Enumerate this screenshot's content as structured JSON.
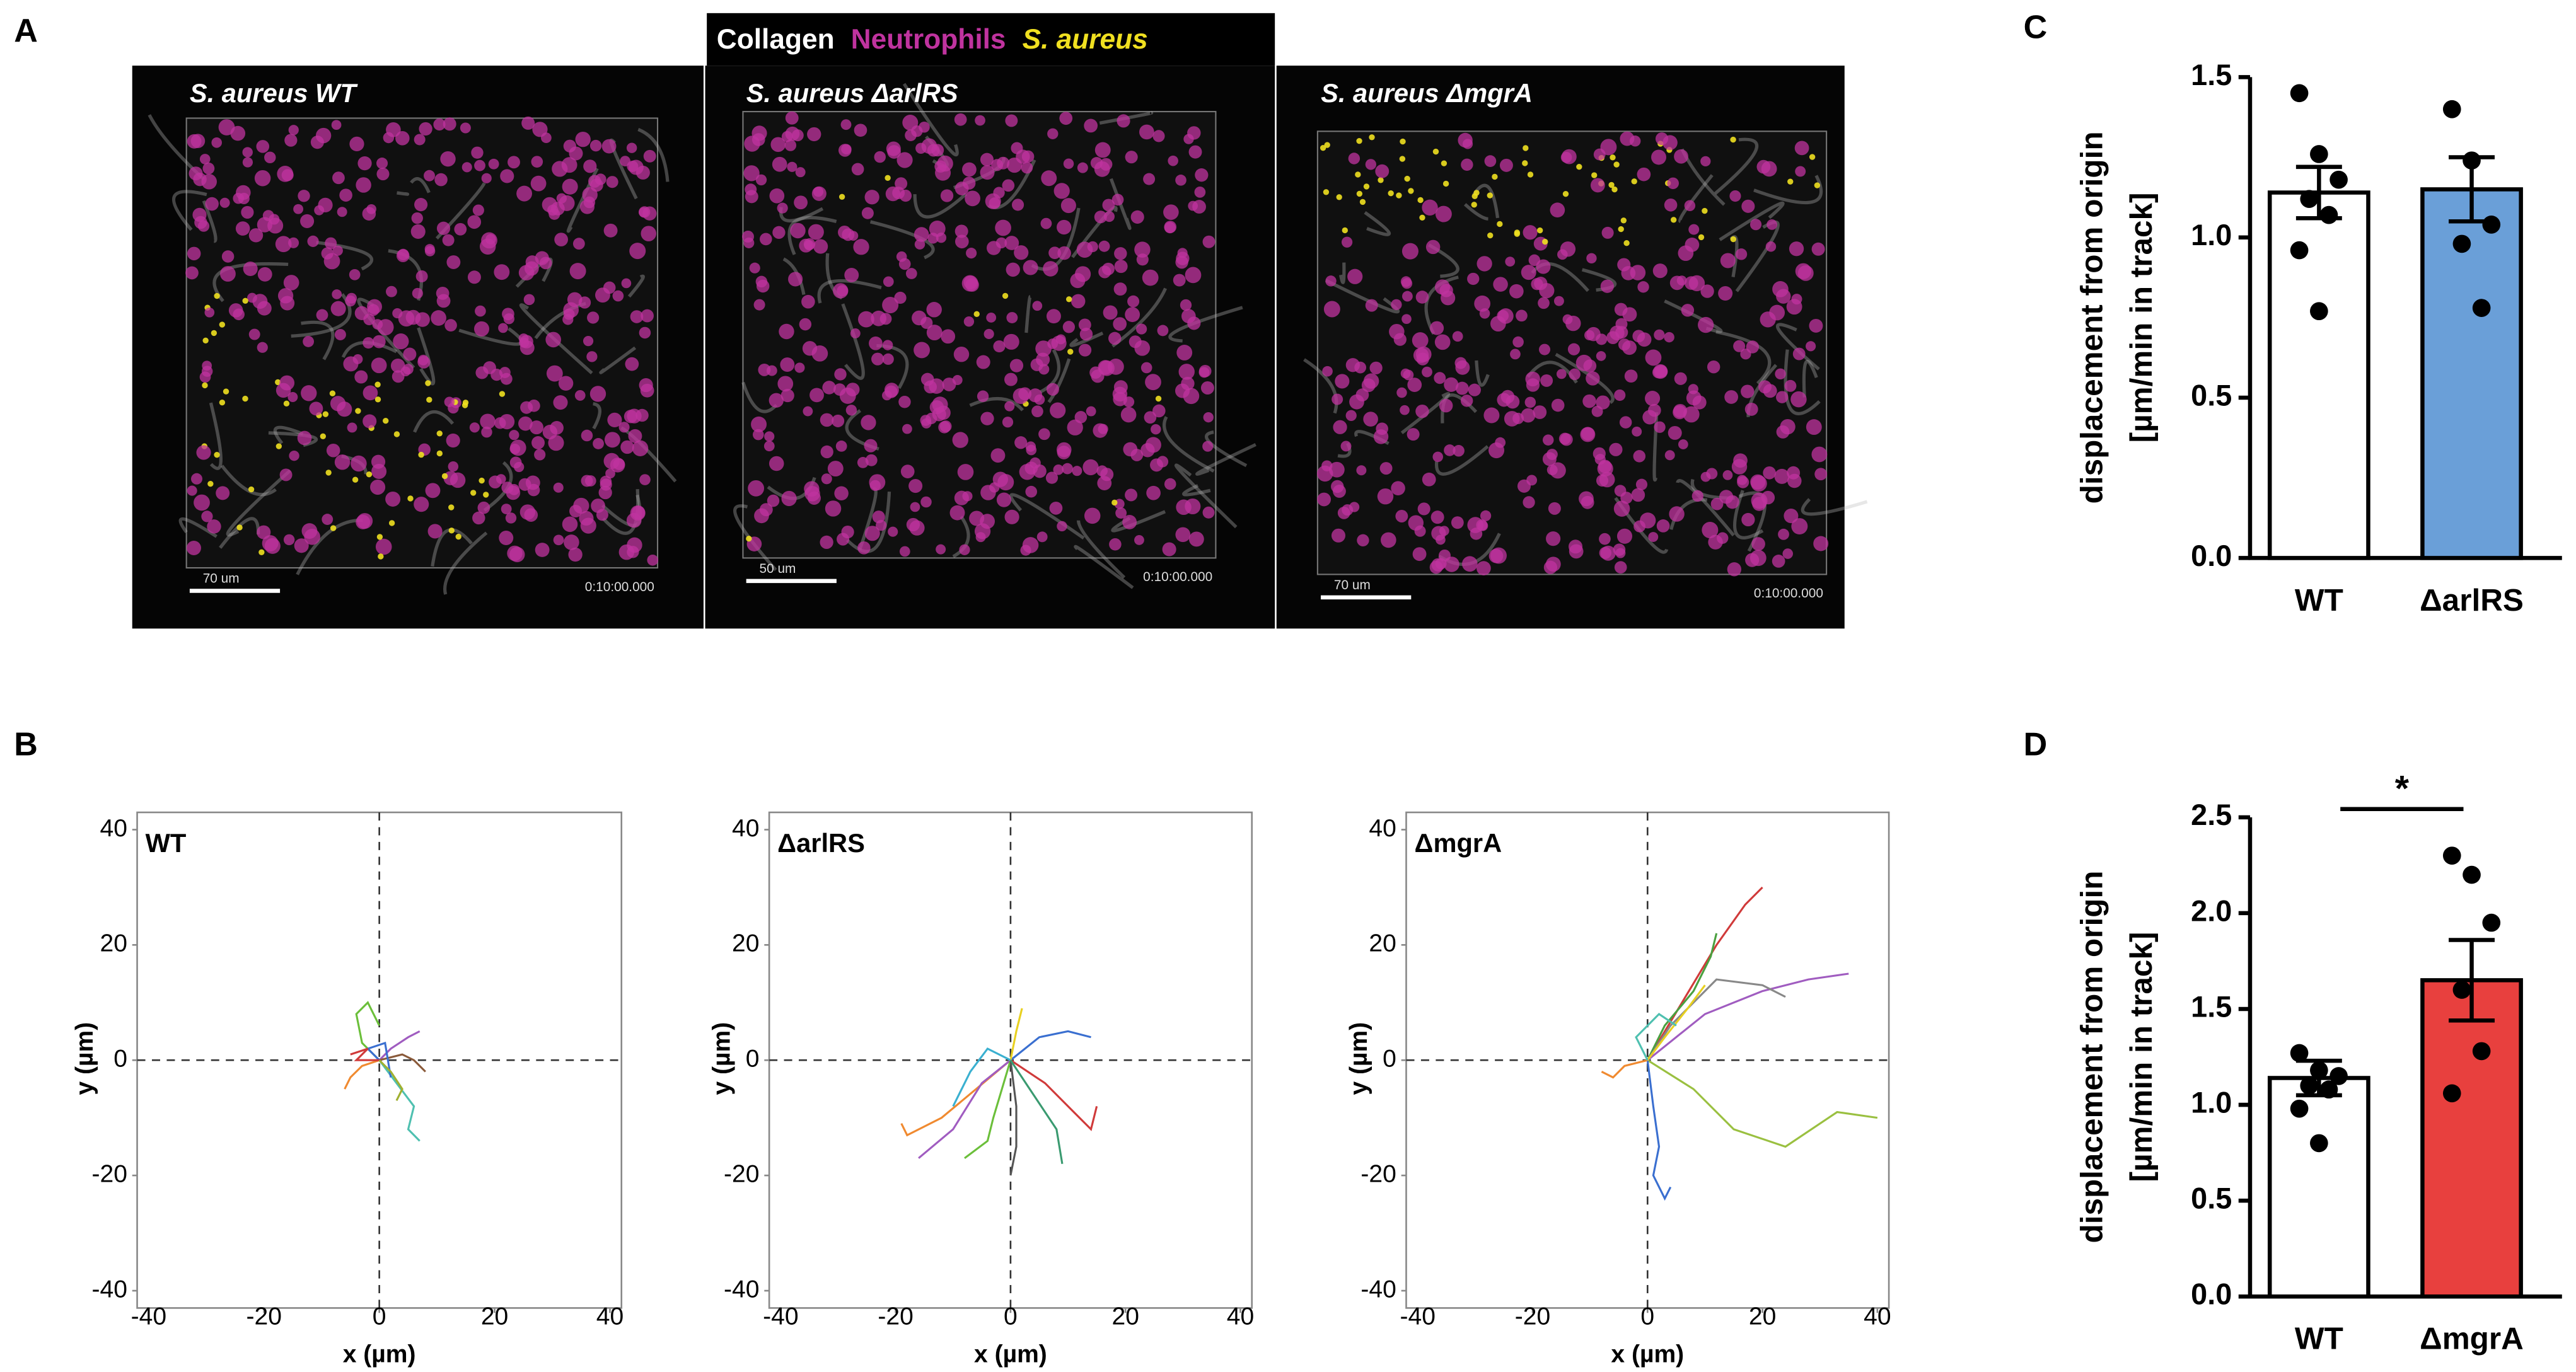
{
  "panel_labels": [
    "A",
    "B",
    "C",
    "D"
  ],
  "panel_a": {
    "legend": [
      {
        "label": "Collagen",
        "color": "#ffffff"
      },
      {
        "label": "Neutrophils",
        "color": "#c0339f"
      },
      {
        "label": "S. aureus",
        "color": "#f0e020"
      }
    ],
    "images": [
      {
        "title": "S. aureus WT",
        "scale_bar": "70 um",
        "timestamp": "0:10:00.000"
      },
      {
        "title": "S. aureus ΔarlRS",
        "scale_bar": "50 um",
        "timestamp": "0:10:00.000"
      },
      {
        "title": "S. aureus ΔmgrA",
        "scale_bar": "70 um",
        "timestamp": "0:10:00.000"
      }
    ]
  },
  "chart_data": [
    {
      "type": "tracks",
      "title": "WT",
      "xlabel": "x (µm)",
      "ylabel": "y (µm)",
      "xlim": [
        -42,
        42
      ],
      "ylim": [
        -43,
        43
      ],
      "xticks": [
        -40,
        -20,
        0,
        20,
        40
      ],
      "yticks": [
        -40,
        -20,
        0,
        20,
        40
      ],
      "series": [
        {
          "color": "#6bbf3a",
          "x": [
            0,
            -3,
            -4,
            -2,
            0
          ],
          "values": [
            0,
            3,
            8,
            10,
            6
          ]
        },
        {
          "color": "#a05cc0",
          "x": [
            0,
            2,
            5,
            7
          ],
          "values": [
            0,
            2,
            4,
            5
          ]
        },
        {
          "color": "#4fc0b0",
          "x": [
            0,
            3,
            6,
            5,
            7
          ],
          "values": [
            0,
            -4,
            -8,
            -12,
            -14
          ]
        },
        {
          "color": "#f08a30",
          "x": [
            0,
            -3,
            -5,
            -6
          ],
          "values": [
            0,
            -1,
            -3,
            -5
          ]
        },
        {
          "color": "#8a5a3a",
          "x": [
            0,
            4,
            6,
            8
          ],
          "values": [
            0,
            1,
            0,
            -2
          ]
        },
        {
          "color": "#3a6fd0",
          "x": [
            0,
            -2,
            1,
            2
          ],
          "values": [
            0,
            2,
            3,
            -3
          ]
        },
        {
          "color": "#d03a3a",
          "x": [
            0,
            -4,
            -2,
            -5
          ],
          "values": [
            0,
            0,
            2,
            1
          ]
        },
        {
          "color": "#a0b030",
          "x": [
            0,
            2,
            4,
            3
          ],
          "values": [
            0,
            -2,
            -5,
            -7
          ]
        }
      ]
    },
    {
      "type": "tracks",
      "title": "ΔarlRS",
      "xlabel": "x (µm)",
      "ylabel": "y (µm)",
      "xlim": [
        -42,
        42
      ],
      "ylim": [
        -43,
        43
      ],
      "xticks": [
        -40,
        -20,
        0,
        20,
        40
      ],
      "yticks": [
        -40,
        -20,
        0,
        20,
        40
      ],
      "series": [
        {
          "color": "#f08a30",
          "x": [
            0,
            -6,
            -12,
            -18,
            -19
          ],
          "values": [
            0,
            -5,
            -10,
            -13,
            -11
          ]
        },
        {
          "color": "#a05cc0",
          "x": [
            0,
            -5,
            -10,
            -16
          ],
          "values": [
            0,
            -4,
            -12,
            -17
          ]
        },
        {
          "color": "#3a6fd0",
          "x": [
            0,
            5,
            10,
            14
          ],
          "values": [
            0,
            4,
            5,
            4
          ]
        },
        {
          "color": "#d03a3a",
          "x": [
            0,
            6,
            11,
            14,
            15
          ],
          "values": [
            0,
            -4,
            -9,
            -12,
            -8
          ]
        },
        {
          "color": "#6bbf3a",
          "x": [
            0,
            -3,
            -4,
            -8
          ],
          "values": [
            0,
            -10,
            -14,
            -17
          ]
        },
        {
          "color": "#555555",
          "x": [
            0,
            1,
            1,
            0
          ],
          "values": [
            0,
            -8,
            -15,
            -20
          ]
        },
        {
          "color": "#e8d020",
          "x": [
            0,
            1,
            2
          ],
          "values": [
            0,
            5,
            9
          ]
        },
        {
          "color": "#3ab0d0",
          "x": [
            0,
            -4,
            -7,
            -10
          ],
          "values": [
            0,
            2,
            -2,
            -8
          ]
        },
        {
          "color": "#3a9a70",
          "x": [
            0,
            4,
            8,
            9
          ],
          "values": [
            0,
            -6,
            -12,
            -18
          ]
        }
      ]
    },
    {
      "type": "tracks",
      "title": "ΔmgrA",
      "xlabel": "x (µm)",
      "ylabel": "y (µm)",
      "xlim": [
        -42,
        42
      ],
      "ylim": [
        -43,
        43
      ],
      "xticks": [
        -40,
        -20,
        0,
        20,
        40
      ],
      "yticks": [
        -40,
        -20,
        0,
        20,
        40
      ],
      "series": [
        {
          "color": "#d03a3a",
          "x": [
            0,
            6,
            12,
            17,
            20
          ],
          "values": [
            0,
            10,
            20,
            27,
            30
          ]
        },
        {
          "color": "#a05cc0",
          "x": [
            0,
            10,
            20,
            28,
            35
          ],
          "values": [
            0,
            8,
            12,
            14,
            15
          ]
        },
        {
          "color": "#9ac040",
          "x": [
            0,
            8,
            15,
            24,
            33,
            40
          ],
          "values": [
            0,
            -5,
            -12,
            -15,
            -9,
            -10
          ]
        },
        {
          "color": "#3a6fd0",
          "x": [
            0,
            1,
            2,
            1,
            3,
            4
          ],
          "values": [
            0,
            -8,
            -15,
            -20,
            -24,
            -22
          ]
        },
        {
          "color": "#4aa040",
          "x": [
            0,
            3,
            8,
            11,
            12
          ],
          "values": [
            0,
            6,
            12,
            18,
            22
          ]
        },
        {
          "color": "#f08a30",
          "x": [
            0,
            -4,
            -6,
            -8
          ],
          "values": [
            0,
            -1,
            -3,
            -2
          ]
        },
        {
          "color": "#888888",
          "x": [
            0,
            4,
            8,
            12,
            20,
            24
          ],
          "values": [
            0,
            6,
            10,
            14,
            13,
            11
          ]
        },
        {
          "color": "#e8d020",
          "x": [
            0,
            3,
            7,
            10
          ],
          "values": [
            0,
            4,
            9,
            13
          ]
        },
        {
          "color": "#4fc0b0",
          "x": [
            0,
            -2,
            2,
            5
          ],
          "values": [
            0,
            4,
            8,
            6
          ]
        }
      ]
    },
    {
      "type": "bar",
      "categories": [
        "WT",
        "ΔarlRS"
      ],
      "values": [
        1.14,
        1.15
      ],
      "errors": [
        0.08,
        0.1
      ],
      "colors": [
        "#ffffff",
        "#6a9fd8"
      ],
      "points": [
        [
          1.45,
          1.26,
          1.18,
          1.12,
          1.07,
          0.96,
          0.77
        ],
        [
          1.4,
          1.24,
          1.04,
          0.98,
          0.78
        ]
      ],
      "ylabel": [
        "displacement from origin",
        "[µm/min in track]"
      ],
      "ylim": [
        0,
        1.5
      ],
      "yticks": [
        {
          "value": 0,
          "label": "0.0"
        },
        0.5,
        {
          "value": 1,
          "label": "1.0"
        },
        1.5
      ]
    },
    {
      "type": "bar",
      "categories": [
        "WT",
        "ΔmgrA"
      ],
      "values": [
        1.14,
        1.65
      ],
      "errors": [
        0.09,
        0.21
      ],
      "colors": [
        "#ffffff",
        "#e8403e"
      ],
      "points": [
        [
          1.27,
          1.18,
          1.15,
          1.1,
          1.08,
          0.98,
          0.8
        ],
        [
          2.3,
          2.2,
          1.95,
          1.6,
          1.28,
          1.06
        ]
      ],
      "ylabel": [
        "displacement from origin",
        "[µm/min in track]"
      ],
      "annotation": "*",
      "ylim": [
        0,
        2.5
      ],
      "yticks": [
        {
          "value": 0,
          "label": "0.0"
        },
        0.5,
        {
          "value": 1,
          "label": "1.0"
        },
        1.5,
        {
          "value": 2,
          "label": "2.0"
        },
        2.5
      ]
    }
  ]
}
